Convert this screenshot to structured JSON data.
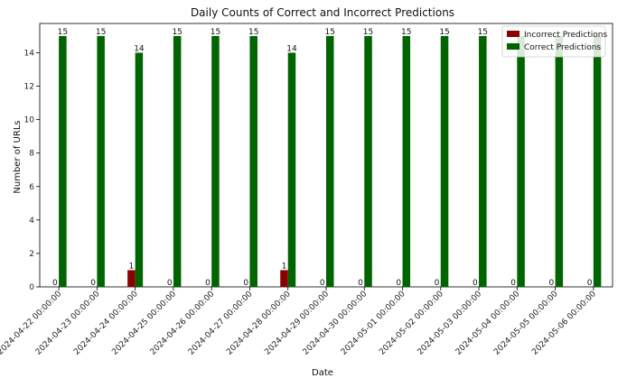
{
  "chart_data": {
    "type": "bar",
    "title": "Daily Counts of Correct and Incorrect Predictions",
    "xlabel": "Date",
    "ylabel": "Number of URLs",
    "ylim": [
      0,
      15.75
    ],
    "yticks": [
      0,
      2,
      4,
      6,
      8,
      10,
      12,
      14
    ],
    "legend_position": "top-right",
    "categories": [
      "2024-04-22 00:00:00",
      "2024-04-23 00:00:00",
      "2024-04-24 00:00:00",
      "2024-04-25 00:00:00",
      "2024-04-26 00:00:00",
      "2024-04-27 00:00:00",
      "2024-04-28 00:00:00",
      "2024-04-29 00:00:00",
      "2024-04-30 00:00:00",
      "2024-05-01 00:00:00",
      "2024-05-02 00:00:00",
      "2024-05-03 00:00:00",
      "2024-05-04 00:00:00",
      "2024-05-05 00:00:00",
      "2024-05-06 00:00:00"
    ],
    "series": [
      {
        "name": "Incorrect Predictions",
        "color": "#8b0000",
        "values": [
          0,
          0,
          1,
          0,
          0,
          0,
          1,
          0,
          0,
          0,
          0,
          0,
          0,
          0,
          0
        ],
        "labels_shown": [
          true,
          true,
          true,
          true,
          true,
          true,
          true,
          true,
          true,
          true,
          true,
          true,
          true,
          true,
          true
        ]
      },
      {
        "name": "Correct Predictions",
        "color": "#006400",
        "values": [
          15,
          15,
          14,
          15,
          15,
          15,
          14,
          15,
          15,
          15,
          15,
          15,
          15,
          15,
          15
        ],
        "labels_shown": [
          true,
          true,
          true,
          true,
          true,
          true,
          true,
          true,
          true,
          true,
          true,
          true,
          false,
          false,
          false
        ]
      }
    ]
  }
}
